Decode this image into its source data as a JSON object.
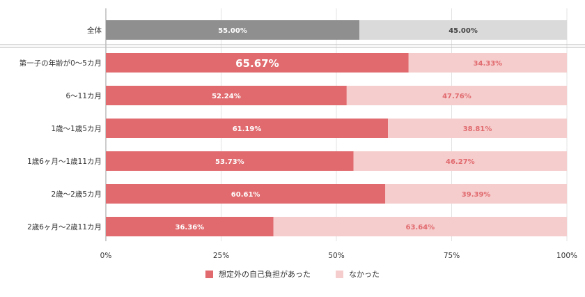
{
  "chart_data": {
    "type": "bar",
    "orientation": "horizontal-stacked-100",
    "categories": [
      "全体",
      "第一子の年齢が0〜5カ月",
      "6〜11カ月",
      "1歳〜1歳5カ月",
      "1歳6ヶ月〜1歳11カ月",
      "2歳〜2歳5カ月",
      "2歳6ヶ月〜2歳11カ月"
    ],
    "series": [
      {
        "name": "想定外の自己負担があった",
        "values": [
          55.0,
          65.67,
          52.24,
          61.19,
          53.73,
          60.61,
          36.36
        ]
      },
      {
        "name": "なかった",
        "values": [
          45.0,
          34.33,
          47.76,
          38.81,
          46.27,
          39.39,
          63.64
        ]
      }
    ],
    "value_labels": [
      [
        "55.00%",
        "45.00%"
      ],
      [
        "65.67%",
        "34.33%"
      ],
      [
        "52.24%",
        "47.76%"
      ],
      [
        "61.19%",
        "38.81%"
      ],
      [
        "53.73%",
        "46.27%"
      ],
      [
        "60.61%",
        "39.39%"
      ],
      [
        "36.36%",
        "63.64%"
      ]
    ],
    "xticks": [
      "0%",
      "25%",
      "50%",
      "75%",
      "100%"
    ],
    "xlim": [
      0,
      100
    ],
    "grid": true,
    "legend_position": "bottom",
    "colors": {
      "total_a": "#8f8f8f",
      "total_b": "#dadada",
      "series_a": "#e06a6e",
      "series_b": "#f6cdcd"
    }
  }
}
